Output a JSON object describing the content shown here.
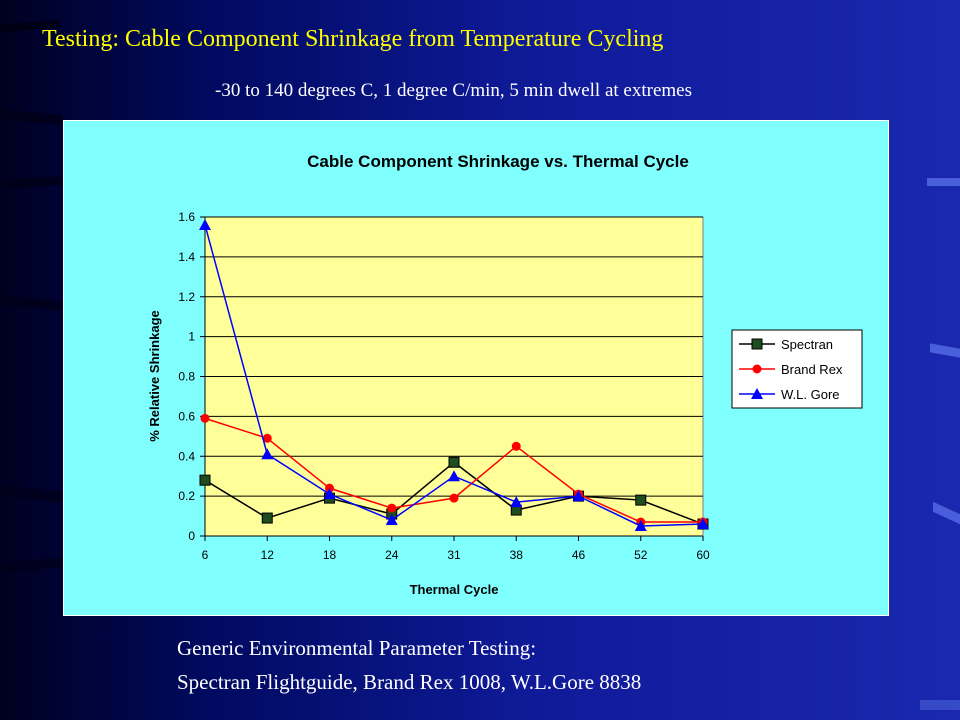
{
  "slide": {
    "title": "Testing:  Cable Component Shrinkage from Temperature Cycling",
    "subtitle": "-30 to 140 degrees C, 1 degree C/min, 5 min dwell at  extremes",
    "footer_line1": "Generic Environmental Parameter Testing:",
    "footer_line2": "Spectran Flightguide, Brand Rex 1008, W.L.Gore 8838"
  },
  "colors": {
    "title": "#ffff00",
    "panel_background": "#80ffff",
    "plot_background": "#ffff99",
    "spectran": "#000000",
    "spectran_marker": "#1f4d1f",
    "brand_rex": "#ff0000",
    "wl_gore": "#0000ff"
  },
  "chart_data": {
    "type": "line",
    "title": "Cable Component Shrinkage vs. Thermal Cycle",
    "xlabel": "Thermal Cycle",
    "ylabel": "% Relative Shrinkage",
    "categories": [
      "6",
      "12",
      "18",
      "24",
      "31",
      "38",
      "46",
      "52",
      "60"
    ],
    "ylim": [
      0,
      1.6
    ],
    "yticks": [
      "0",
      "0.2",
      "0.4",
      "0.6",
      "0.8",
      "1",
      "1.2",
      "1.4",
      "1.6"
    ],
    "grid": true,
    "legend_position": "right",
    "series": [
      {
        "name": "Spectran",
        "marker": "square",
        "values": [
          0.28,
          0.09,
          0.19,
          0.11,
          0.37,
          0.13,
          0.2,
          0.18,
          0.06
        ]
      },
      {
        "name": "Brand Rex",
        "marker": "circle",
        "values": [
          0.59,
          0.49,
          0.24,
          0.14,
          0.19,
          0.45,
          0.21,
          0.07,
          0.07
        ]
      },
      {
        "name": "W.L. Gore",
        "marker": "triangle",
        "values": [
          1.56,
          0.41,
          0.21,
          0.08,
          0.3,
          0.17,
          0.2,
          0.05,
          0.06
        ]
      }
    ]
  }
}
